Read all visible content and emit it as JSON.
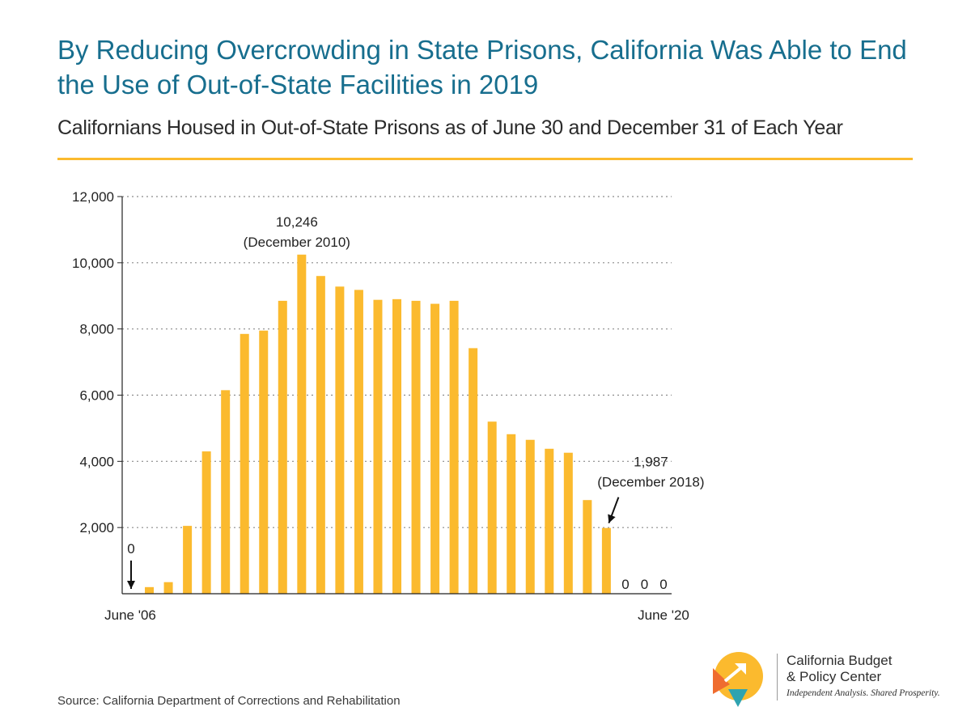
{
  "title": "By Reducing Overcrowding in State Prisons, California Was Able to End the Use of Out-of-State Facilities in 2019",
  "subtitle": "Californians Housed in Out-of-State Prisons as of June 30 and December 31 of Each Year",
  "source": "Source: California Department of Corrections and Rehabilitation",
  "logo": {
    "name_line1": "California Budget",
    "name_line2": "& Policy Center",
    "tagline": "Independent Analysis. Shared Prosperity."
  },
  "colors": {
    "bar": "#fbba2e",
    "title": "#176e8e",
    "rule": "#fbba2e",
    "gridline": "#8a8a8a",
    "logo_yellow": "#fbba2e",
    "logo_orange": "#ef6c2f",
    "logo_teal": "#2fa3b0"
  },
  "chart_data": {
    "type": "bar",
    "title": "",
    "xlabel": "",
    "ylabel": "",
    "ylim": [
      0,
      12000
    ],
    "yticks": [
      2000,
      4000,
      6000,
      8000,
      10000,
      12000
    ],
    "ytick_labels": [
      "2,000",
      "4,000",
      "6,000",
      "8,000",
      "10,000",
      "12,000"
    ],
    "grid": "horizontal dotted",
    "x_start_label": "June '06",
    "x_end_label": "June '20",
    "values": [
      0,
      200,
      350,
      2050,
      4300,
      6150,
      7850,
      7950,
      8850,
      10246,
      9600,
      9280,
      9180,
      8880,
      8900,
      8850,
      8760,
      8850,
      7420,
      5200,
      4820,
      4650,
      4380,
      4260,
      2830,
      1987,
      0,
      0,
      0
    ],
    "annotations": [
      {
        "index": 0,
        "label": "0",
        "arrow": true
      },
      {
        "index": 9,
        "label": "10,246",
        "sublabel": "(December 2010)",
        "arrow": false
      },
      {
        "index": 25,
        "label": "1,987",
        "sublabel": "(December 2018)",
        "arrow": true
      },
      {
        "index": 26,
        "label": "0",
        "arrow": false
      },
      {
        "index": 27,
        "label": "0",
        "arrow": false
      },
      {
        "index": 28,
        "label": "0",
        "arrow": false
      }
    ]
  }
}
